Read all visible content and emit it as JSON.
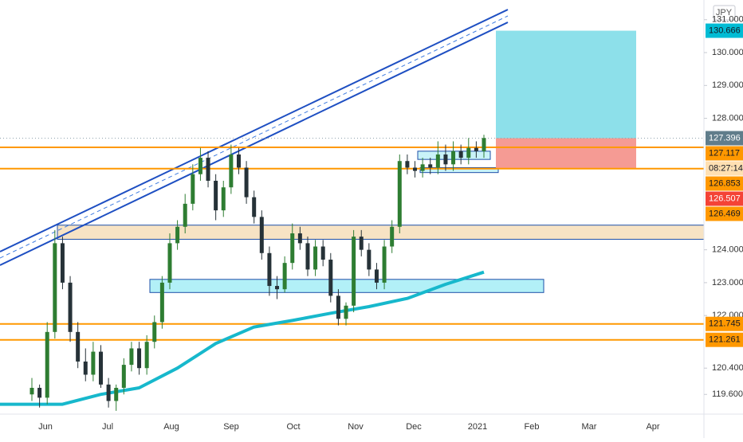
{
  "chart_data": {
    "type": "candlestick",
    "currency": "JPY",
    "open": [
      119.6,
      119.8,
      119.5,
      121.5,
      124.2,
      123.0,
      121.5,
      120.6,
      120.2,
      120.9,
      119.9,
      119.4,
      119.8,
      120.5,
      121.0,
      120.4,
      121.2,
      121.8,
      123.0,
      124.2,
      124.7,
      125.4,
      126.3,
      126.8,
      126.1,
      125.2,
      125.9,
      126.9,
      126.5,
      125.6,
      125.0,
      123.9,
      122.9,
      122.8,
      123.6,
      124.5,
      124.2,
      123.4,
      124.1,
      123.7,
      122.6,
      121.9,
      122.3,
      124.4,
      124.0,
      123.4,
      123.0,
      124.1,
      124.7,
      126.7,
      126.5,
      126.4,
      126.6,
      126.5,
      126.9,
      126.6,
      127.0,
      126.8,
      127.1,
      127.0
    ],
    "high": [
      120.1,
      119.9,
      121.8,
      124.6,
      124.4,
      123.2,
      121.8,
      121.0,
      121.2,
      121.1,
      120.1,
      119.9,
      120.7,
      121.2,
      121.2,
      121.4,
      122.0,
      123.2,
      124.5,
      124.9,
      125.7,
      126.6,
      127.1,
      127.0,
      126.3,
      126.1,
      127.2,
      127.1,
      126.7,
      125.8,
      125.2,
      124.1,
      123.2,
      123.8,
      124.8,
      124.7,
      124.4,
      124.3,
      124.3,
      123.9,
      122.8,
      122.4,
      124.6,
      124.6,
      124.2,
      123.6,
      124.3,
      124.9,
      126.9,
      126.9,
      126.7,
      126.8,
      126.8,
      127.3,
      127.2,
      127.3,
      127.2,
      127.4,
      127.3,
      127.5
    ],
    "low": [
      119.4,
      119.2,
      119.3,
      121.3,
      122.8,
      121.2,
      120.4,
      120.0,
      120.0,
      119.8,
      119.2,
      119.1,
      119.6,
      120.3,
      120.2,
      120.2,
      121.0,
      121.6,
      122.8,
      124.0,
      124.5,
      125.2,
      126.1,
      125.9,
      124.9,
      125.0,
      125.7,
      126.3,
      125.4,
      124.8,
      123.7,
      122.6,
      122.5,
      122.7,
      123.4,
      124.0,
      123.2,
      123.2,
      123.5,
      122.4,
      121.7,
      121.7,
      122.1,
      123.8,
      123.2,
      122.8,
      122.8,
      123.9,
      124.5,
      126.3,
      126.2,
      126.2,
      126.3,
      126.3,
      126.4,
      126.4,
      126.6,
      126.6,
      126.8,
      126.8
    ],
    "close": [
      119.8,
      119.5,
      121.5,
      124.2,
      123.0,
      121.5,
      120.6,
      120.2,
      120.9,
      119.9,
      119.4,
      119.8,
      120.5,
      121.0,
      120.4,
      121.2,
      121.8,
      123.0,
      124.2,
      124.7,
      125.4,
      126.3,
      126.8,
      126.1,
      125.2,
      125.9,
      126.9,
      126.5,
      125.6,
      125.0,
      123.9,
      122.9,
      122.8,
      123.6,
      124.5,
      124.2,
      123.4,
      124.1,
      123.7,
      122.6,
      121.9,
      122.3,
      124.4,
      124.0,
      123.4,
      123.0,
      124.1,
      124.7,
      126.7,
      126.5,
      126.4,
      126.6,
      126.5,
      126.9,
      126.6,
      127.0,
      126.8,
      127.1,
      127.0,
      127.4
    ],
    "up_color": "#2e7d32",
    "down_color": "#263238",
    "moving_average": {
      "color": "#17b8cc",
      "values": [
        119.3,
        119.6,
        119.8,
        120.4,
        121.15,
        121.65,
        121.85,
        122.07,
        122.27,
        122.52,
        122.95,
        123.32
      ]
    },
    "x_labels": [
      "Jun",
      "Jul",
      "Aug",
      "Sep",
      "Oct",
      "Nov",
      "Dec",
      "2021",
      "Feb",
      "Mar",
      "Apr"
    ],
    "ylim": [
      119.0,
      131.6
    ],
    "yticks": [
      {
        "value": 131,
        "label": "131.000"
      },
      {
        "value": 130,
        "label": "130.000"
      },
      {
        "value": 129,
        "label": "129.000"
      },
      {
        "value": 128,
        "label": "128.000"
      },
      {
        "value": 124,
        "label": "124.000"
      },
      {
        "value": 123,
        "label": "123.000"
      },
      {
        "value": 122,
        "label": "122.000"
      },
      {
        "value": 120.4,
        "label": "120.400"
      },
      {
        "value": 119.6,
        "label": "119.600"
      }
    ],
    "horizontal_levels": {
      "color": "#ff9800",
      "values": [
        127.117,
        126.469,
        121.745,
        121.261
      ]
    },
    "zones": [
      {
        "top": 124.75,
        "bottom": 124.32,
        "color": "#f7e3c4"
      },
      {
        "top": 123.1,
        "bottom": 122.7,
        "color": "#b2f0f7"
      },
      {
        "top": 127.0,
        "bottom": 126.75,
        "color": "#c9f3f8"
      },
      {
        "top": 126.5,
        "bottom": 126.35,
        "color": "#c9f3f8"
      }
    ],
    "position": {
      "entry": 127.396,
      "target": 130.666,
      "stop": 126.469,
      "profit_color": "#8de0ea",
      "loss_color": "#f59b94"
    },
    "price_labels": [
      {
        "value": 130.666,
        "label": "130.666",
        "color": "#00bcd4"
      },
      {
        "value": 127.396,
        "label": "127.396",
        "color": "#607d8b"
      },
      {
        "value": 127.117,
        "label": "127.117",
        "color": "#ff9800"
      },
      {
        "label": "08:27:14",
        "color": "#ffe0b2"
      },
      {
        "value": 126.853,
        "label": "126.853",
        "color": "#ff9800"
      },
      {
        "value": 126.507,
        "label": "126.507",
        "color": "#f44336"
      },
      {
        "value": 126.469,
        "label": "126.469",
        "color": "#ff9800"
      },
      {
        "value": 121.745,
        "label": "121.745",
        "color": "#ff9800"
      },
      {
        "value": 121.261,
        "label": "121.261",
        "color": "#ff9800"
      }
    ]
  }
}
